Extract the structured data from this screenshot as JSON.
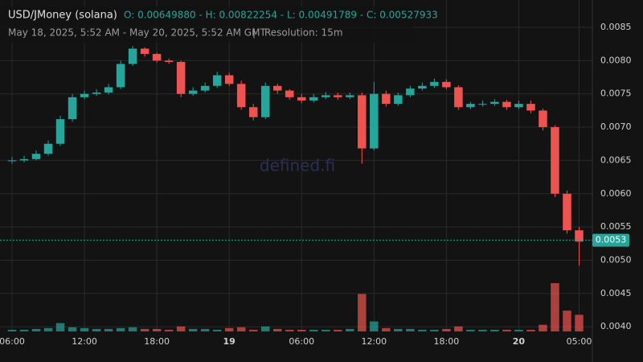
{
  "chart_data": {
    "type": "candlestick",
    "title": "USD/JMoney (solana)",
    "ohlc_summary": "O: 0.00649880 - H: 0.00822254 - L: 0.00491789 - C: 0.00527933",
    "subtitle": "May 18, 2025, 5:52 AM - May 20, 2025, 5:52 AM GMT",
    "resolution": "Resolution: 15m",
    "watermark": "defined.fi",
    "last_price": 0.0053,
    "up_color": "#26a69a",
    "down_color": "#ef5350",
    "x": [
      0,
      1,
      2,
      3,
      4,
      5,
      6,
      7,
      8,
      9,
      10,
      11,
      12,
      13,
      14,
      15,
      16,
      17,
      18,
      19,
      20,
      21,
      22,
      23,
      24,
      25,
      26,
      27,
      28,
      29,
      30,
      31,
      32,
      33,
      34,
      35,
      36,
      37,
      38,
      39,
      40,
      41,
      42,
      43,
      44,
      45,
      46,
      47
    ],
    "open": [
      0.00649,
      0.0065,
      0.00652,
      0.0066,
      0.00675,
      0.00712,
      0.00745,
      0.0075,
      0.00752,
      0.0076,
      0.00795,
      0.00818,
      0.0081,
      0.008,
      0.00798,
      0.0075,
      0.00755,
      0.00762,
      0.00778,
      0.00765,
      0.0073,
      0.00715,
      0.00762,
      0.00755,
      0.00745,
      0.0074,
      0.00745,
      0.00748,
      0.00745,
      0.00748,
      0.00668,
      0.0075,
      0.00735,
      0.00748,
      0.00758,
      0.00762,
      0.00768,
      0.0076,
      0.0073,
      0.00735,
      0.00735,
      0.00738,
      0.0073,
      0.00735,
      0.00725,
      0.007,
      0.006,
      0.00545
    ],
    "high": [
      0.00655,
      0.00657,
      0.00665,
      0.0068,
      0.00717,
      0.0075,
      0.00755,
      0.00757,
      0.00765,
      0.008,
      0.00822,
      0.0082,
      0.00812,
      0.00803,
      0.008,
      0.0076,
      0.00767,
      0.00783,
      0.00782,
      0.0077,
      0.00735,
      0.00767,
      0.00765,
      0.00757,
      0.0075,
      0.0075,
      0.00753,
      0.00752,
      0.00752,
      0.00752,
      0.00768,
      0.00755,
      0.00752,
      0.00762,
      0.00767,
      0.00773,
      0.00772,
      0.00763,
      0.00738,
      0.0074,
      0.00742,
      0.00741,
      0.0074,
      0.0074,
      0.00728,
      0.00703,
      0.00605,
      0.0055
    ],
    "low": [
      0.00645,
      0.00647,
      0.0065,
      0.00657,
      0.00672,
      0.00708,
      0.00742,
      0.00747,
      0.00749,
      0.00757,
      0.00792,
      0.00806,
      0.00797,
      0.00795,
      0.00745,
      0.00747,
      0.00752,
      0.00759,
      0.00762,
      0.00726,
      0.0071,
      0.00712,
      0.0075,
      0.00741,
      0.00736,
      0.00737,
      0.00742,
      0.00741,
      0.00742,
      0.00645,
      0.00665,
      0.00731,
      0.00732,
      0.00745,
      0.00755,
      0.00759,
      0.00757,
      0.00726,
      0.00727,
      0.00731,
      0.00732,
      0.00726,
      0.00727,
      0.00721,
      0.00695,
      0.00595,
      0.0054,
      0.00492
    ],
    "close": [
      0.0065,
      0.00652,
      0.0066,
      0.00675,
      0.00712,
      0.00745,
      0.0075,
      0.00752,
      0.0076,
      0.00795,
      0.00818,
      0.0081,
      0.008,
      0.00798,
      0.0075,
      0.00755,
      0.00762,
      0.00778,
      0.00765,
      0.0073,
      0.00715,
      0.00762,
      0.00755,
      0.00745,
      0.0074,
      0.00745,
      0.00748,
      0.00745,
      0.00748,
      0.00668,
      0.0075,
      0.00735,
      0.00748,
      0.00758,
      0.00762,
      0.00768,
      0.0076,
      0.0073,
      0.00735,
      0.00735,
      0.00738,
      0.0073,
      0.00735,
      0.00725,
      0.007,
      0.006,
      0.00545,
      0.00528
    ],
    "volume": [
      2,
      2,
      3,
      4,
      10,
      5,
      4,
      3,
      3,
      4,
      5,
      3,
      3,
      2,
      6,
      3,
      3,
      2,
      4,
      5,
      2,
      6,
      3,
      2,
      2,
      2,
      2,
      2,
      3,
      45,
      12,
      4,
      3,
      3,
      2,
      2,
      3,
      6,
      2,
      2,
      2,
      2,
      2,
      2,
      8,
      58,
      25,
      20
    ],
    "xlim": [
      -1,
      48.1
    ],
    "ylim": [
      0.00393,
      0.00879
    ],
    "xticks": [
      {
        "value": 0,
        "label": "06:00"
      },
      {
        "value": 6,
        "label": "12:00"
      },
      {
        "value": 12,
        "label": "18:00"
      },
      {
        "value": 18,
        "label": "19"
      },
      {
        "value": 24,
        "label": "06:00"
      },
      {
        "value": 30,
        "label": "12:00"
      },
      {
        "value": 36,
        "label": "18:00"
      },
      {
        "value": 42,
        "label": "20"
      },
      {
        "value": 47,
        "label": "05:00"
      }
    ],
    "yticks": [
      {
        "value": 0.004,
        "label": "0.0040"
      },
      0.0045,
      {
        "value": 0.005,
        "label": "0.0050"
      },
      0.0055,
      {
        "value": 0.006,
        "label": "0.0060"
      },
      0.0065,
      {
        "value": 0.007,
        "label": "0.0070"
      },
      0.0075,
      {
        "value": 0.008,
        "label": "0.0080"
      },
      0.0085
    ],
    "grid": true
  }
}
